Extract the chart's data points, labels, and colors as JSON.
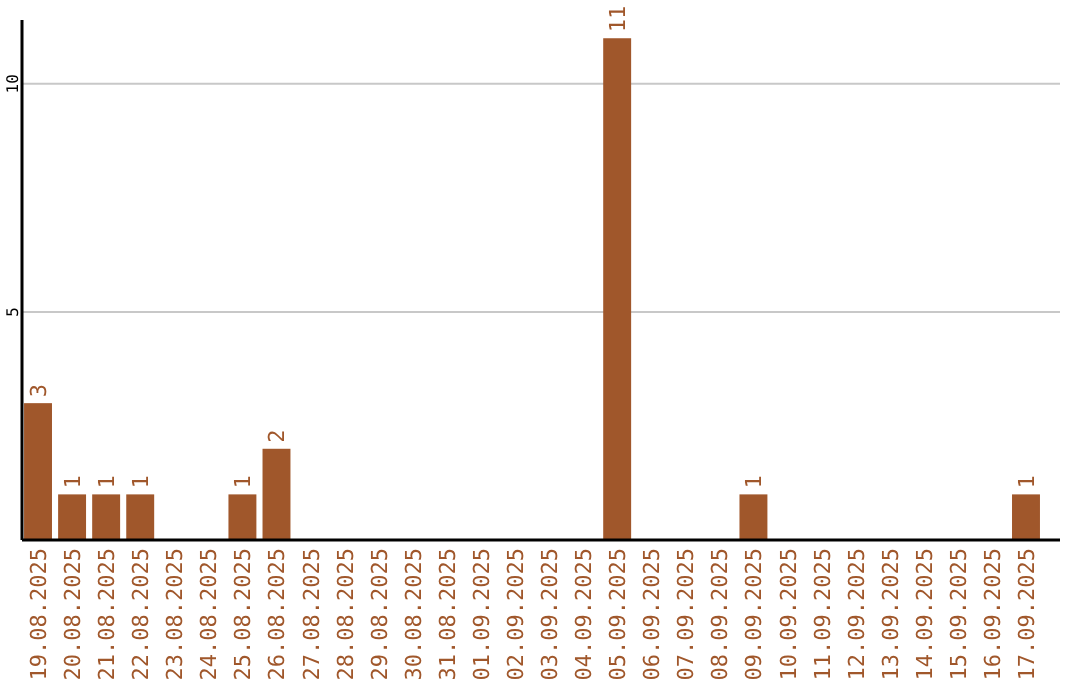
{
  "chart_data": {
    "type": "bar",
    "categories": [
      "19.08.2025",
      "20.08.2025",
      "21.08.2025",
      "22.08.2025",
      "23.08.2025",
      "24.08.2025",
      "25.08.2025",
      "26.08.2025",
      "27.08.2025",
      "28.08.2025",
      "29.08.2025",
      "30.08.2025",
      "31.08.2025",
      "01.09.2025",
      "02.09.2025",
      "03.09.2025",
      "04.09.2025",
      "05.09.2025",
      "06.09.2025",
      "07.09.2025",
      "08.09.2025",
      "09.09.2025",
      "10.09.2025",
      "11.09.2025",
      "12.09.2025",
      "13.09.2025",
      "14.09.2025",
      "15.09.2025",
      "16.09.2025",
      "17.09.2025"
    ],
    "values": [
      3,
      1,
      1,
      1,
      0,
      0,
      1,
      2,
      0,
      0,
      0,
      0,
      0,
      0,
      0,
      0,
      0,
      11,
      0,
      0,
      0,
      1,
      0,
      0,
      0,
      0,
      0,
      0,
      0,
      1
    ],
    "value_labels": [
      "3",
      "1",
      "1",
      "1",
      null,
      null,
      "1",
      "2",
      null,
      null,
      null,
      null,
      null,
      null,
      null,
      null,
      null,
      "11",
      null,
      null,
      null,
      "1",
      null,
      null,
      null,
      null,
      null,
      null,
      null,
      "1"
    ],
    "color": "#a0572b",
    "ylim": [
      0,
      11.4
    ],
    "yticks": [
      5,
      10
    ],
    "grid": "y"
  }
}
